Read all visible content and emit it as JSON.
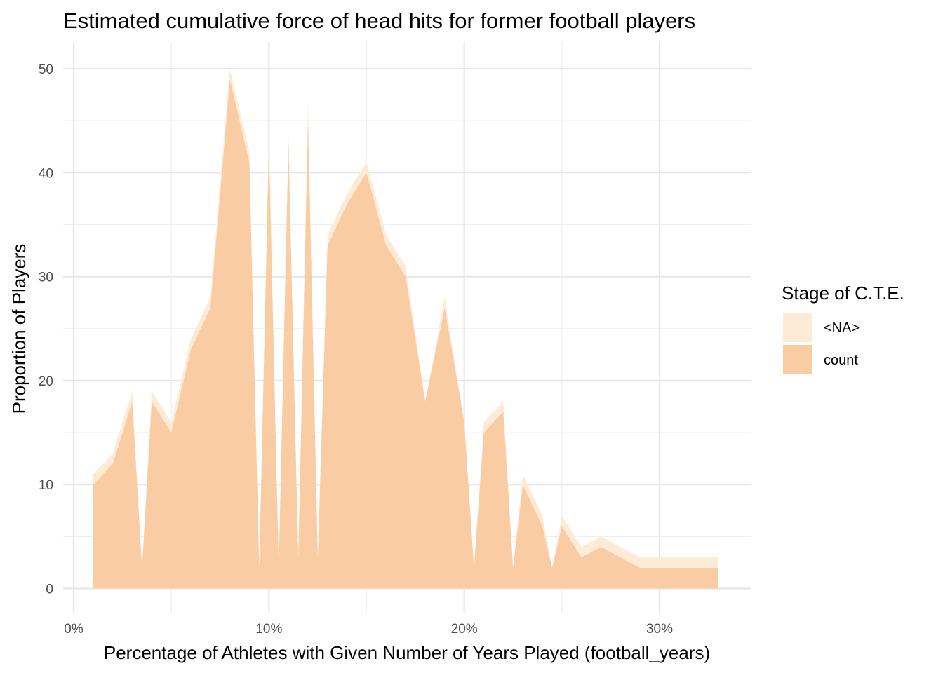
{
  "chart_data": {
    "type": "area",
    "title": "Estimated cumulative force of head hits for former football players",
    "xlabel": "Percentage of Athletes with Given Number of Years Played (football_years)",
    "ylabel": "Proportion of Players",
    "xlim": [
      0,
      34
    ],
    "ylim": [
      -2,
      52
    ],
    "x_ticks": [
      0,
      10,
      20,
      30
    ],
    "x_tick_labels": [
      "0%",
      "10%",
      "20%",
      "30%"
    ],
    "y_ticks": [
      0,
      10,
      20,
      30,
      40,
      50
    ],
    "y_tick_labels": [
      "0",
      "10",
      "20",
      "30",
      "40",
      "50"
    ],
    "grid": true,
    "stacked": true,
    "legend": {
      "title": "Stage of C.T.E.",
      "position": "right"
    },
    "x": [
      1,
      2,
      3,
      3.5,
      4,
      5,
      6,
      7,
      8,
      9,
      9.5,
      10,
      10.5,
      11,
      11.5,
      12,
      12.5,
      13,
      14,
      15,
      16,
      17,
      18,
      19,
      20,
      20.5,
      21,
      22,
      22.5,
      23,
      24,
      24.5,
      25,
      26,
      27,
      28,
      29,
      30,
      31,
      32,
      33
    ],
    "series": [
      {
        "name": "count",
        "color": "#f9cca4",
        "values": [
          10,
          12,
          18,
          2,
          18,
          15,
          23,
          27,
          49,
          41,
          2,
          43,
          2,
          43,
          3,
          45,
          3,
          33,
          37,
          40,
          33,
          30,
          18,
          27,
          16,
          2,
          15,
          17,
          2,
          10,
          6,
          2,
          6,
          3,
          4,
          3,
          2,
          2,
          2,
          2,
          2
        ]
      },
      {
        "name": "<NA>",
        "color": "#fdebd6",
        "values": [
          1,
          1,
          1,
          0,
          1,
          1,
          1,
          1,
          1,
          1,
          0,
          1,
          0,
          1,
          0,
          2,
          0,
          1,
          1,
          1,
          1,
          1,
          0,
          1,
          0,
          0,
          1,
          1,
          0,
          1,
          1,
          0,
          1,
          1,
          1,
          1,
          1,
          1,
          1,
          1,
          1
        ]
      }
    ]
  }
}
